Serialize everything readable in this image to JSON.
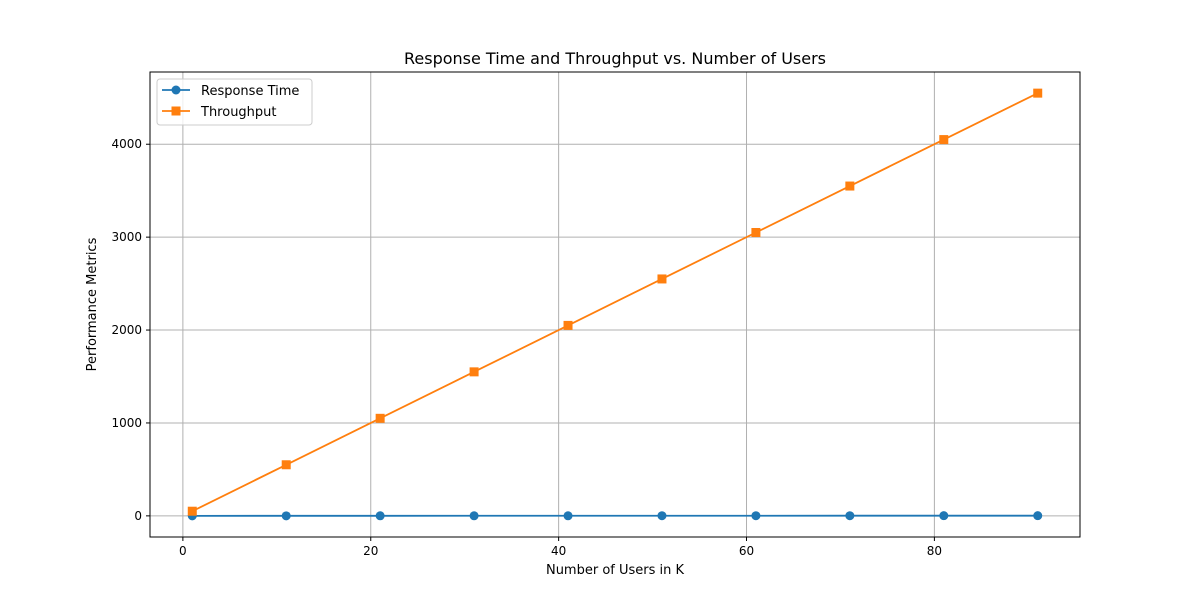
{
  "chart_data": {
    "type": "line",
    "title": "Response Time and Throughput vs. Number of Users",
    "xlabel": "Number of Users in K",
    "ylabel": "Performance Metrics",
    "x": [
      1,
      11,
      21,
      31,
      41,
      51,
      61,
      71,
      81,
      91
    ],
    "xlim": [
      -3.5,
      95.5
    ],
    "ylim": [
      -227.5,
      4777.5
    ],
    "xticks": [
      0,
      20,
      40,
      60,
      80
    ],
    "yticks": [
      0,
      1000,
      2000,
      3000,
      4000
    ],
    "xtick_labels": [
      "0",
      "20",
      "40",
      "60",
      "80"
    ],
    "ytick_labels": [
      "0",
      "1000",
      "2000",
      "3000",
      "4000"
    ],
    "grid": true,
    "legend_position": "upper-left",
    "series": [
      {
        "name": "Response Time",
        "color": "#1f77b4",
        "marker": "circle",
        "values": [
          0.3,
          0.5,
          0.7,
          0.9,
          1.1,
          1.3,
          1.5,
          1.7,
          1.9,
          2.1
        ]
      },
      {
        "name": "Throughput",
        "color": "#ff7f0e",
        "marker": "square",
        "values": [
          50,
          550,
          1050,
          1550,
          2050,
          2550,
          3050,
          3550,
          4050,
          4550
        ]
      }
    ]
  }
}
